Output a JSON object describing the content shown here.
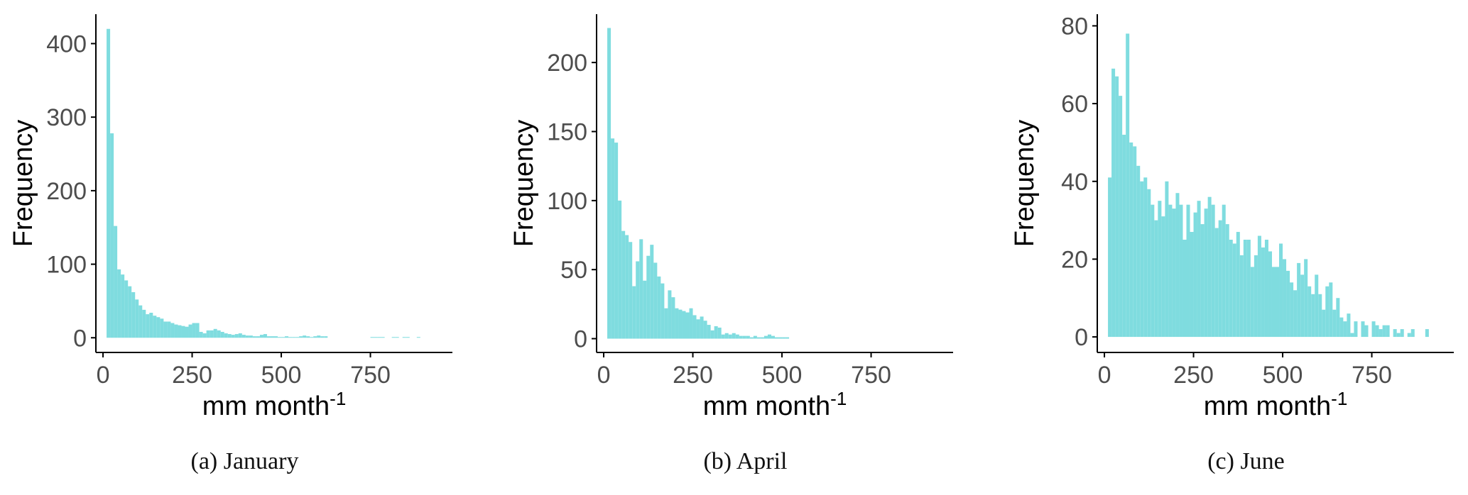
{
  "colors": {
    "bar": "#7fdcdf",
    "axis": "#000000",
    "tick_text": "#4d4d4d"
  },
  "chart_data": [
    {
      "type": "bar",
      "caption": "(a) January",
      "xlabel": "mm month",
      "xlabel_superscript": "-1",
      "ylabel": "Frequency",
      "xlim": [
        -20,
        980
      ],
      "ylim": [
        -20,
        440
      ],
      "xticks": [
        0,
        250,
        500,
        750
      ],
      "yticks": [
        0,
        100,
        200,
        300,
        400
      ],
      "bin_width": 10,
      "bin_start": 10,
      "values": [
        420,
        278,
        152,
        93,
        86,
        78,
        70,
        62,
        52,
        44,
        38,
        32,
        34,
        30,
        28,
        26,
        22,
        22,
        20,
        18,
        17,
        16,
        15,
        18,
        20,
        20,
        8,
        6,
        10,
        10,
        12,
        10,
        8,
        6,
        5,
        4,
        5,
        6,
        4,
        3,
        3,
        2,
        2,
        4,
        5,
        2,
        2,
        2,
        1,
        1,
        2,
        1,
        1,
        1,
        2,
        3,
        2,
        1,
        2,
        3,
        2,
        2,
        0,
        0,
        0,
        0,
        0,
        0,
        0,
        0,
        0,
        0,
        0,
        0,
        1,
        1,
        1,
        1,
        0,
        0,
        1,
        1,
        0,
        1,
        1,
        0,
        0,
        1
      ]
    },
    {
      "type": "bar",
      "caption": "(b) April",
      "xlabel": "mm month",
      "xlabel_superscript": "-1",
      "ylabel": "Frequency",
      "xlim": [
        -20,
        980
      ],
      "ylim": [
        -10,
        235
      ],
      "xticks": [
        0,
        250,
        500,
        750
      ],
      "yticks": [
        0,
        50,
        100,
        150,
        200
      ],
      "bin_width": 10,
      "bin_start": 10,
      "values": [
        225,
        145,
        142,
        100,
        78,
        75,
        70,
        38,
        56,
        72,
        42,
        60,
        68,
        55,
        45,
        40,
        22,
        35,
        30,
        22,
        21,
        20,
        19,
        22,
        17,
        14,
        16,
        13,
        10,
        6,
        9,
        8,
        3,
        4,
        3,
        4,
        3,
        2,
        2,
        2,
        1,
        2,
        1,
        1,
        2,
        3,
        2,
        1,
        1,
        1,
        1
      ]
    },
    {
      "type": "bar",
      "caption": "(c) June",
      "xlabel": "mm month",
      "xlabel_superscript": "-1",
      "ylabel": "Frequency",
      "xlim": [
        -20,
        980
      ],
      "ylim": [
        -4,
        83
      ],
      "xticks": [
        0,
        250,
        500,
        750
      ],
      "yticks": [
        0,
        20,
        40,
        60,
        80
      ],
      "bin_width": 10,
      "bin_start": 10,
      "values": [
        41,
        69,
        67,
        62,
        52,
        78,
        50,
        49,
        44,
        40,
        41,
        38,
        34,
        30,
        35,
        31,
        40,
        34,
        33,
        37,
        34,
        25,
        34,
        27,
        32,
        35,
        29,
        33,
        36,
        34,
        28,
        30,
        34,
        29,
        25,
        24,
        27,
        21,
        25,
        25,
        18,
        21,
        26,
        23,
        25,
        22,
        18,
        18,
        24,
        20,
        17,
        14,
        12,
        19,
        16,
        20,
        13,
        11,
        16,
        11,
        7,
        13,
        14,
        7,
        10,
        5,
        4,
        6,
        1,
        4,
        0,
        4,
        3,
        0,
        4,
        3,
        2,
        3,
        3,
        0,
        2,
        1,
        2,
        0,
        1,
        2,
        0,
        0,
        0,
        2
      ]
    }
  ]
}
